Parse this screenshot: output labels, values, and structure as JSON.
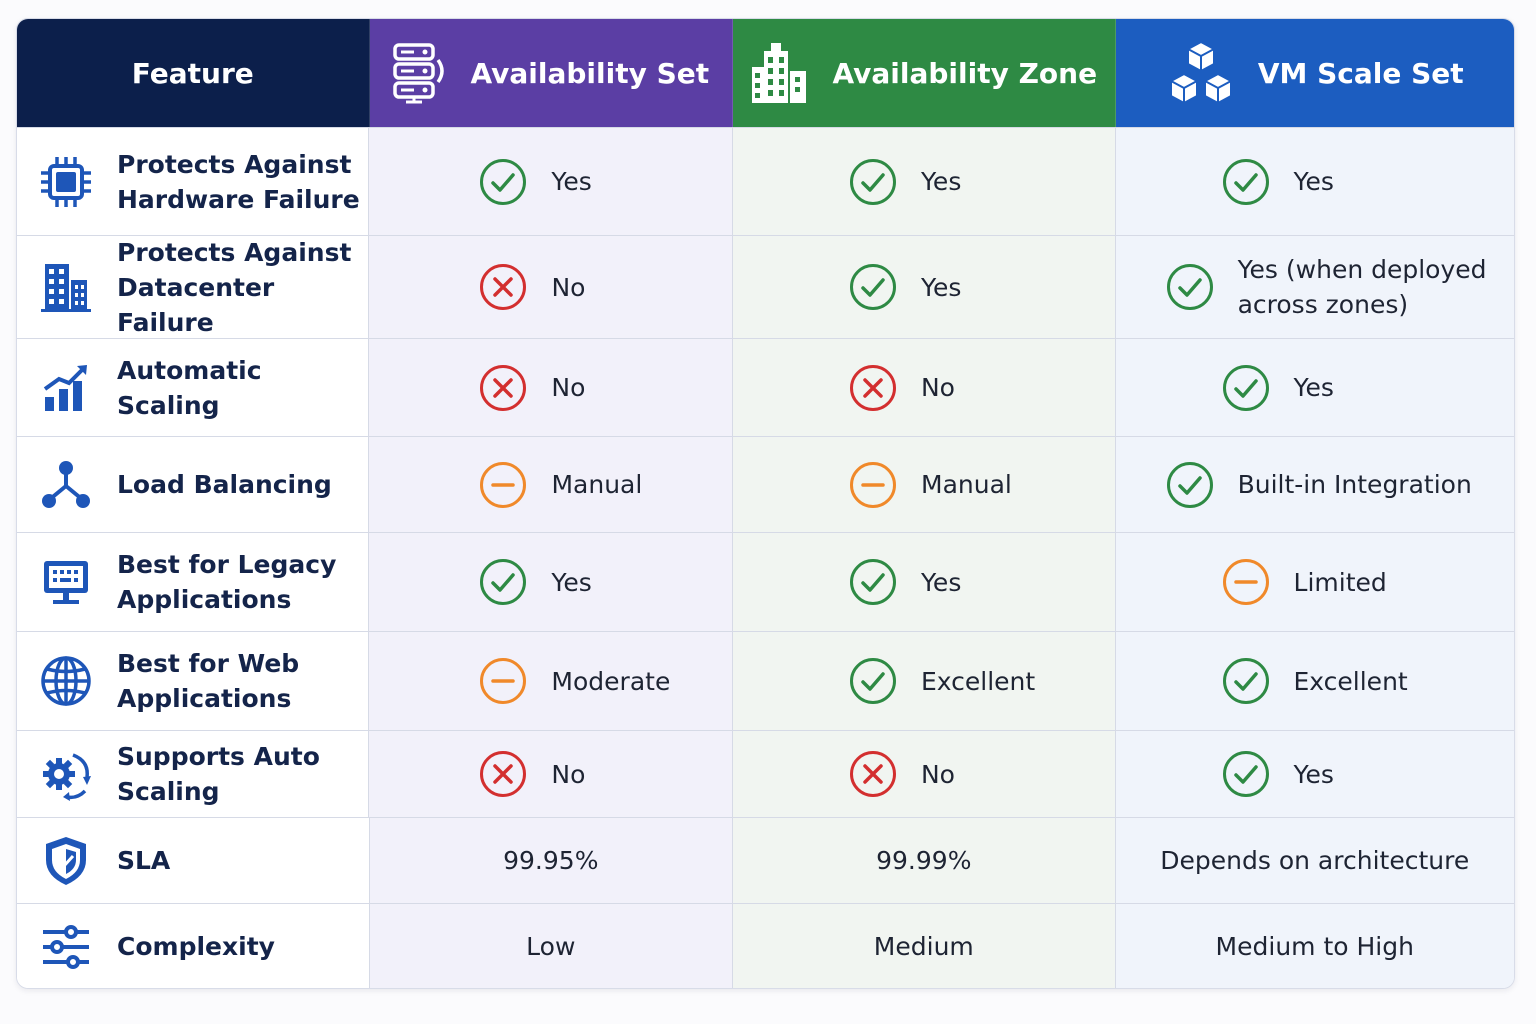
{
  "header": {
    "feature": "Feature",
    "availability_set": "Availability Set",
    "availability_zone": "Availability Zone",
    "vm_scale_set": "VM Scale Set"
  },
  "colors": {
    "header_feature": "#0c1f4b",
    "header_availability_set": "#5b3ea4",
    "header_availability_zone": "#2e8a44",
    "header_vm_scale_set": "#1c5dc0",
    "status_yes": "#2e8a44",
    "status_no": "#d32f2f",
    "status_partial": "#f0892a",
    "feature_icon": "#1e56b8"
  },
  "rows": [
    {
      "feature": "Protects Against\nHardware Failure",
      "icon": "chip-icon",
      "aset": {
        "status": "yes",
        "text": "Yes"
      },
      "azone": {
        "status": "yes",
        "text": "Yes"
      },
      "vmss": {
        "status": "yes",
        "text": "Yes"
      }
    },
    {
      "feature": "Protects Against\nDatacenter Failure",
      "icon": "building-icon",
      "aset": {
        "status": "no",
        "text": "No"
      },
      "azone": {
        "status": "yes",
        "text": "Yes"
      },
      "vmss": {
        "status": "yes",
        "text": "Yes (when deployed\nacross zones)"
      }
    },
    {
      "feature": "Automatic Scaling",
      "icon": "growth-chart-icon",
      "aset": {
        "status": "no",
        "text": "No"
      },
      "azone": {
        "status": "no",
        "text": "No"
      },
      "vmss": {
        "status": "yes",
        "text": "Yes"
      }
    },
    {
      "feature": "Load Balancing",
      "icon": "network-nodes-icon",
      "aset": {
        "status": "partial",
        "text": "Manual"
      },
      "azone": {
        "status": "partial",
        "text": "Manual"
      },
      "vmss": {
        "status": "yes",
        "text": "Built-in Integration"
      }
    },
    {
      "feature": "Best for Legacy\nApplications",
      "icon": "monitor-icon",
      "aset": {
        "status": "yes",
        "text": "Yes"
      },
      "azone": {
        "status": "yes",
        "text": "Yes"
      },
      "vmss": {
        "status": "partial",
        "text": "Limited"
      }
    },
    {
      "feature": "Best for Web\nApplications",
      "icon": "globe-icon",
      "aset": {
        "status": "partial",
        "text": "Moderate"
      },
      "azone": {
        "status": "yes",
        "text": "Excellent"
      },
      "vmss": {
        "status": "yes",
        "text": "Excellent"
      }
    },
    {
      "feature": "Supports Auto Scaling",
      "icon": "gear-refresh-icon",
      "aset": {
        "status": "no",
        "text": "No"
      },
      "azone": {
        "status": "no",
        "text": "No"
      },
      "vmss": {
        "status": "yes",
        "text": "Yes"
      }
    },
    {
      "feature": "SLA",
      "icon": "shield-icon",
      "aset": {
        "status": "none",
        "text": "99.95%"
      },
      "azone": {
        "status": "none",
        "text": "99.99%"
      },
      "vmss": {
        "status": "none",
        "text": "Depends on architecture"
      }
    },
    {
      "feature": "Complexity",
      "icon": "sliders-icon",
      "aset": {
        "status": "none",
        "text": "Low"
      },
      "azone": {
        "status": "none",
        "text": "Medium"
      },
      "vmss": {
        "status": "none",
        "text": "Medium to High"
      }
    }
  ]
}
